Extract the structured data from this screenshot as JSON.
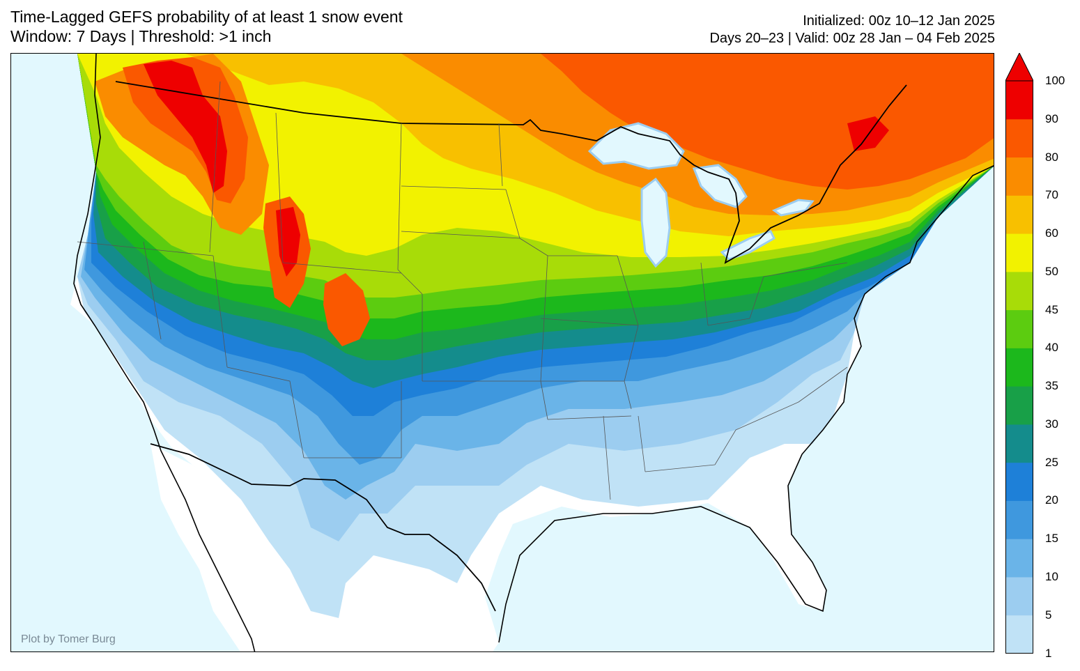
{
  "header": {
    "title_line1": "Time-Lagged GEFS probability of at least 1 snow event",
    "title_line2": "Window: 7 Days | Threshold: >1 inch",
    "meta_line1": "Initialized: 00z 10–12 Jan 2025",
    "meta_line2": "Days 20–23 | Valid: 00z 28 Jan – 04 Feb 2025"
  },
  "credit": "Plot by Tomer Burg",
  "colors": {
    "ocean": "#e2f8fe",
    "land": "#ffffff",
    "level_1": "#c0e2f6",
    "level_5": "#9ccdf0",
    "level_10": "#6ab4e8",
    "level_15": "#3f98de",
    "level_20": "#1e80d8",
    "level_25": "#148c8c",
    "level_30": "#18a048",
    "level_35": "#1cb81c",
    "level_40": "#5ccc10",
    "level_45": "#a8dc08",
    "level_50": "#f2f200",
    "level_60": "#f8c000",
    "level_70": "#fa8c00",
    "level_80": "#fa5800",
    "level_90": "#ee0000"
  },
  "colorbar": {
    "ticks": [
      "1",
      "5",
      "10",
      "15",
      "20",
      "25",
      "30",
      "35",
      "40",
      "45",
      "50",
      "60",
      "70",
      "80",
      "90",
      "100"
    ],
    "colors": [
      "#c0e2f6",
      "#9ccdf0",
      "#6ab4e8",
      "#3f98de",
      "#1e80d8",
      "#148c8c",
      "#18a048",
      "#1cb81c",
      "#5ccc10",
      "#a8dc08",
      "#f2f200",
      "#f8c000",
      "#fa8c00",
      "#fa5800",
      "#ee0000"
    ],
    "extend": "max"
  }
}
